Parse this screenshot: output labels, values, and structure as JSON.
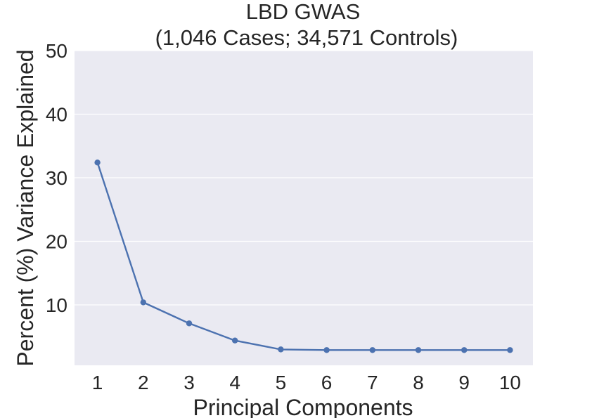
{
  "chart_data": {
    "type": "line",
    "title": [
      "LBD GWAS",
      "(1,046 Cases; 34,571 Controls)"
    ],
    "xlabel": "Principal Components",
    "ylabel": "Percent (%) Variance Explained",
    "x": [
      1,
      2,
      3,
      4,
      5,
      6,
      7,
      8,
      9,
      10
    ],
    "series": [
      {
        "values": [
          32.4,
          10.4,
          7.1,
          4.4,
          3.0,
          2.9,
          2.9,
          2.9,
          2.9,
          2.9
        ]
      }
    ],
    "xticks": [
      "1",
      "2",
      "3",
      "4",
      "5",
      "6",
      "7",
      "8",
      "9",
      "10"
    ],
    "yticks": [
      10,
      20,
      30,
      40,
      50
    ],
    "xlim": [
      0.5,
      10.5
    ],
    "ylim": [
      0.5,
      50
    ],
    "grid": true,
    "legend": "none",
    "colors": {
      "background": "#eaeaf2",
      "grid": "#ffffff",
      "line": "#4c72b0",
      "text": "#262626"
    }
  }
}
